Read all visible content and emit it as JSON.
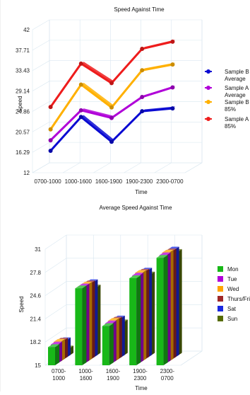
{
  "chart_data": [
    {
      "type": "line",
      "title": "Speed Against Time",
      "xlabel": "Time",
      "ylabel": "Speed",
      "ylim": [
        12,
        42
      ],
      "yticks": [
        "12",
        "16.29",
        "20.57",
        "24.86",
        "29.14",
        "33.43",
        "37.71",
        "42"
      ],
      "categories": [
        "0700-1000",
        "1000-1600",
        "1600-1900",
        "1900-2300",
        "2300-0700"
      ],
      "series": [
        {
          "name": "Sample B Average",
          "color": "#0a0ad2",
          "values": [
            16.3,
            23.4,
            18.2,
            24.6,
            25.2
          ]
        },
        {
          "name": "Sample A Average",
          "color": "#b000d8",
          "values": [
            18.5,
            24.8,
            23.2,
            27.6,
            29.6
          ]
        },
        {
          "name": "Sample B 85%",
          "color": "#ffb000",
          "values": [
            20.8,
            30.2,
            25.4,
            33.2,
            34.4
          ]
        },
        {
          "name": "Sample A 85%",
          "color": "#ee1c1c",
          "values": [
            25.5,
            34.6,
            30.5,
            37.7,
            39.2
          ]
        }
      ],
      "legend": "right",
      "grid": true
    },
    {
      "type": "bar",
      "title": "Average Speed Against Time",
      "xlabel": "Time",
      "ylabel": "Speed",
      "ylim": [
        15,
        31
      ],
      "yticks": [
        "15",
        "18.2",
        "21.4",
        "24.6",
        "27.8",
        "31"
      ],
      "categories": [
        "0700-1000",
        "1000-1600",
        "1600-1900",
        "1900-2300",
        "2300-0700"
      ],
      "series": [
        {
          "name": "Mon",
          "color": "#18b818",
          "values": [
            17.5,
            25.6,
            20.4,
            27.0,
            29.8
          ]
        },
        {
          "name": "Tue",
          "color": "#b000d8",
          "values": [
            17.6,
            25.6,
            20.5,
            27.1,
            29.9
          ]
        },
        {
          "name": "Wed",
          "color": "#ffa500",
          "values": [
            17.7,
            25.6,
            20.6,
            27.2,
            30.0
          ]
        },
        {
          "name": "Thurs/Fri",
          "color": "#a02828",
          "values": [
            17.6,
            25.5,
            20.5,
            27.1,
            29.9
          ]
        },
        {
          "name": "Sat",
          "color": "#1a28e0",
          "values": [
            17.4,
            25.4,
            20.4,
            27.0,
            29.9
          ]
        },
        {
          "name": "Sun",
          "color": "#556b00",
          "values": [
            16.0,
            24.4,
            19.6,
            26.2,
            29.3
          ]
        }
      ],
      "legend": "right",
      "grid": true
    }
  ]
}
